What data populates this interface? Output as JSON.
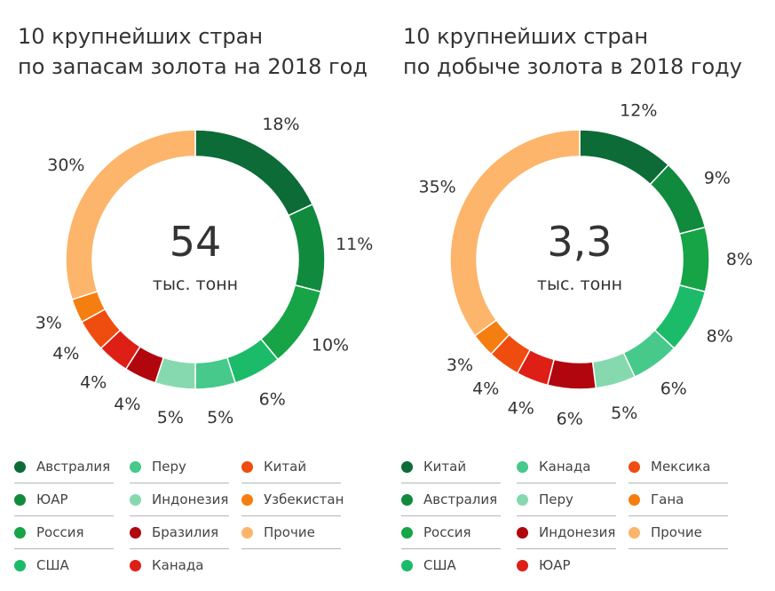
{
  "chart_data": [
    {
      "type": "pie",
      "title": [
        "10 крупнейших стран",
        "по запасам золота на 2018 год"
      ],
      "center_value": "54",
      "center_unit": "тыс. тонн",
      "slices": [
        {
          "name": "Австралия",
          "value": 18,
          "label": "18%",
          "color": "#0c6b36"
        },
        {
          "name": "ЮАР",
          "value": 11,
          "label": "11%",
          "color": "#108a3c"
        },
        {
          "name": "Россия",
          "value": 10,
          "label": "10%",
          "color": "#16a446"
        },
        {
          "name": "США",
          "value": 6,
          "label": "6%",
          "color": "#1cbb6a"
        },
        {
          "name": "Перу",
          "value": 5,
          "label": "5%",
          "color": "#46c98a"
        },
        {
          "name": "Индонезия",
          "value": 5,
          "label": "5%",
          "color": "#86d9ae"
        },
        {
          "name": "Бразилия",
          "value": 4,
          "label": "4%",
          "color": "#b1060d"
        },
        {
          "name": "Канада",
          "value": 4,
          "label": "4%",
          "color": "#de1f16"
        },
        {
          "name": "Китай",
          "value": 4,
          "label": "4%",
          "color": "#ef4c10"
        },
        {
          "name": "Узбекистан",
          "value": 3,
          "label": "3%",
          "color": "#f57e10"
        },
        {
          "name": "Прочие",
          "value": 30,
          "label": "30%",
          "color": "#fcb56b"
        }
      ],
      "legend_order": [
        "Австралия",
        "ЮАР",
        "Россия",
        "США",
        "Перу",
        "Индонезия",
        "Бразилия",
        "Канада",
        "Китай",
        "Узбекистан",
        "Прочие"
      ]
    },
    {
      "type": "pie",
      "title": [
        "10 крупнейших стран",
        "по добыче золота в 2018 году"
      ],
      "center_value": "3,3",
      "center_unit": "тыс. тонн",
      "slices": [
        {
          "name": "Китай",
          "value": 12,
          "label": "12%",
          "color": "#0c6b36"
        },
        {
          "name": "Австралия",
          "value": 9,
          "label": "9%",
          "color": "#108a3c"
        },
        {
          "name": "Россия",
          "value": 8,
          "label": "8%",
          "color": "#16a446"
        },
        {
          "name": "США",
          "value": 8,
          "label": "8%",
          "color": "#1cbb6a"
        },
        {
          "name": "Канада",
          "value": 6,
          "label": "6%",
          "color": "#46c98a"
        },
        {
          "name": "Перу",
          "value": 5,
          "label": "5%",
          "color": "#86d9ae"
        },
        {
          "name": "Индонезия",
          "value": 6,
          "label": "6%",
          "color": "#b1060d"
        },
        {
          "name": "ЮАР",
          "value": 4,
          "label": "4%",
          "color": "#de1f16"
        },
        {
          "name": "Мексика",
          "value": 4,
          "label": "4%",
          "color": "#ef4c10"
        },
        {
          "name": "Гана",
          "value": 3,
          "label": "3%",
          "color": "#f57e10"
        },
        {
          "name": "Прочие",
          "value": 35,
          "label": "35%",
          "color": "#fcb56b"
        }
      ],
      "legend_order": [
        "Китай",
        "Австралия",
        "Россия",
        "США",
        "Канада",
        "Перу",
        "Индонезия",
        "ЮАР",
        "Мексика",
        "Гана",
        "Прочие"
      ]
    }
  ]
}
